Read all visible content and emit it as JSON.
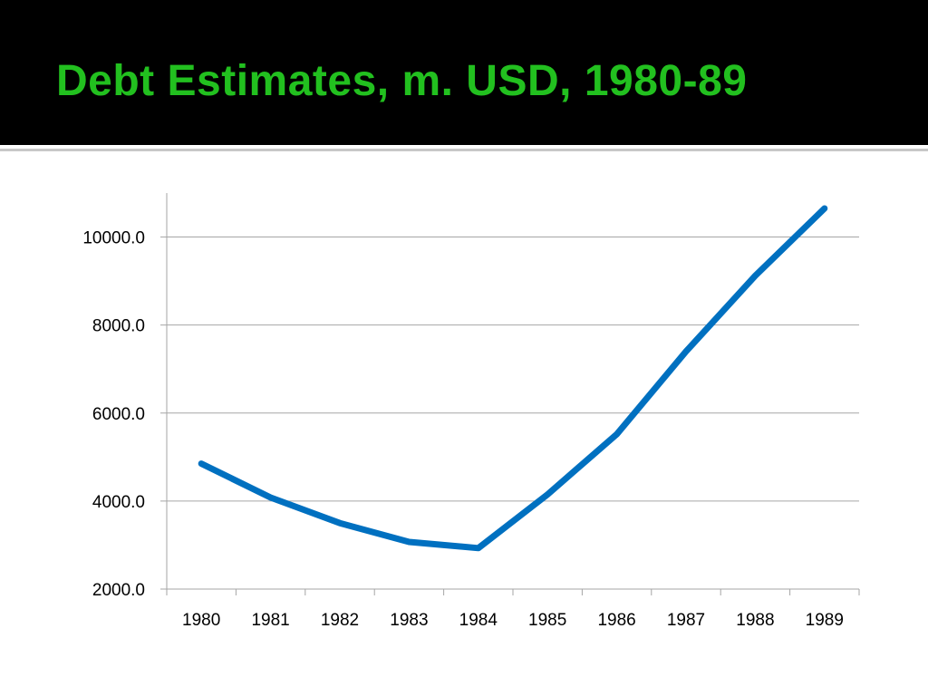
{
  "slide": {
    "title": "Debt Estimates, m. USD, 1980-89",
    "title_color": "#22C01F",
    "header_background": "#000000",
    "body_background": "#FFFFFF"
  },
  "chart_data": {
    "type": "line",
    "categories": [
      "1980",
      "1981",
      "1982",
      "1983",
      "1984",
      "1985",
      "1986",
      "1987",
      "1988",
      "1989"
    ],
    "series": [
      {
        "values": [
          4850,
          4080,
          3500,
          3070,
          2930,
          4150,
          5520,
          7400,
          9120,
          10650
        ],
        "color": "#0070C0"
      }
    ],
    "ylim": [
      2000,
      11000
    ],
    "yticks": [
      2000,
      4000,
      6000,
      8000,
      10000
    ],
    "ytick_labels": [
      "2000.0",
      "4000.0",
      "6000.0",
      "8000.0",
      "10000.0"
    ],
    "grid": true,
    "legend": "none"
  }
}
